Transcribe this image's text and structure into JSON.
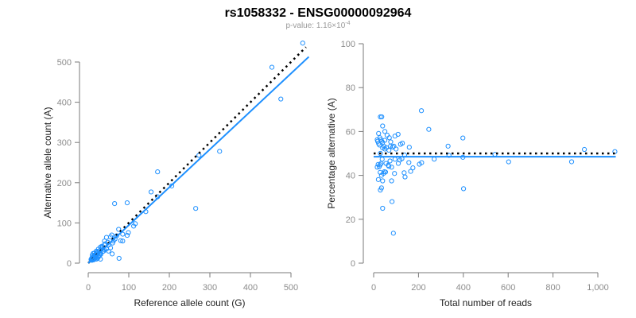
{
  "title": "rs1058332 - ENSG00000092964",
  "subtitle": {
    "prefix": "p-value: 1.16×10",
    "exponent": "-4"
  },
  "colors": {
    "points": "#1e90ff",
    "fit_line": "#1e90ff",
    "null_line": "#000000",
    "axis": "#7a7a7a"
  },
  "chart_data": [
    {
      "type": "scatter",
      "xlabel": "Reference allele count (G)",
      "ylabel": "Alternative allele count (A)",
      "xlim": [
        0,
        540
      ],
      "ylim": [
        0,
        550
      ],
      "xticks": [
        0,
        100,
        200,
        300,
        400,
        500
      ],
      "yticks": [
        0,
        100,
        200,
        300,
        400,
        500
      ],
      "tick_labels_x": [
        "0",
        "100",
        "200",
        "300",
        "400",
        "500"
      ],
      "tick_labels_y": [
        "0",
        "100",
        "200",
        "300",
        "400",
        "500"
      ],
      "fit_line_slope": 0.943,
      "null_line_slope": 1.0,
      "points": [
        [
          529,
          547
        ],
        [
          453,
          487
        ],
        [
          475,
          408
        ],
        [
          324,
          278
        ],
        [
          273,
          268
        ],
        [
          265,
          136
        ],
        [
          171,
          227
        ],
        [
          206,
          192
        ],
        [
          155,
          177
        ],
        [
          171,
          165
        ],
        [
          142,
          128
        ],
        [
          65,
          148
        ],
        [
          96,
          150
        ],
        [
          116,
          98
        ],
        [
          112,
          92
        ],
        [
          99,
          76
        ],
        [
          96,
          69
        ],
        [
          75,
          84
        ],
        [
          85,
          72
        ],
        [
          76,
          12
        ],
        [
          59,
          23
        ],
        [
          80,
          56
        ],
        [
          85,
          55
        ],
        [
          70,
          68
        ],
        [
          55,
          65
        ],
        [
          45,
          64
        ],
        [
          60,
          50
        ],
        [
          50,
          45
        ],
        [
          40,
          55
        ],
        [
          40,
          45
        ],
        [
          35,
          40
        ],
        [
          45,
          35
        ],
        [
          55,
          38
        ],
        [
          50,
          30
        ],
        [
          30,
          40
        ],
        [
          38,
          30
        ],
        [
          25,
          35
        ],
        [
          30,
          25
        ],
        [
          28,
          20
        ],
        [
          22,
          25
        ],
        [
          20,
          30
        ],
        [
          25,
          15
        ],
        [
          18,
          22
        ],
        [
          15,
          25
        ],
        [
          20,
          18
        ],
        [
          12,
          24
        ],
        [
          10,
          20
        ],
        [
          20,
          10
        ],
        [
          23,
          12
        ],
        [
          30,
          10
        ],
        [
          15,
          15
        ],
        [
          12,
          14
        ],
        [
          10,
          12
        ],
        [
          8,
          10
        ],
        [
          14,
          11
        ],
        [
          18,
          15
        ],
        [
          16,
          20
        ],
        [
          11,
          9
        ],
        [
          9,
          13
        ],
        [
          13,
          8
        ],
        [
          17,
          12
        ],
        [
          19,
          21
        ],
        [
          24,
          26
        ],
        [
          27,
          30
        ],
        [
          33,
          35
        ],
        [
          36,
          29
        ],
        [
          42,
          48
        ],
        [
          48,
          52
        ],
        [
          26,
          18
        ],
        [
          14,
          18
        ],
        [
          21,
          14
        ],
        [
          31,
          22
        ],
        [
          7,
          9
        ],
        [
          9,
          7
        ],
        [
          16,
          13
        ],
        [
          12,
          16
        ],
        [
          22,
          28
        ],
        [
          34,
          42
        ],
        [
          39,
          34
        ],
        [
          62,
          55
        ],
        [
          66,
          60
        ],
        [
          58,
          70
        ]
      ]
    },
    {
      "type": "scatter",
      "xlabel": "Total number of reads",
      "ylabel": "Percentage alternative (A)",
      "xlim": [
        0,
        1080
      ],
      "ylim": [
        0,
        100
      ],
      "xticks": [
        0,
        200,
        400,
        600,
        800,
        1000
      ],
      "yticks": [
        0,
        20,
        40,
        60,
        80,
        100
      ],
      "tick_labels_x": [
        "0",
        "200",
        "400",
        "600",
        "800",
        "1,000"
      ],
      "tick_labels_y": [
        "0",
        "20",
        "40",
        "60",
        "80",
        "100"
      ],
      "fit_line_y": 48.5,
      "null_line_y": 50,
      "points_rule": "x = ref + alt, y = 100*alt/(ref+alt) from the first chart's points"
    }
  ]
}
